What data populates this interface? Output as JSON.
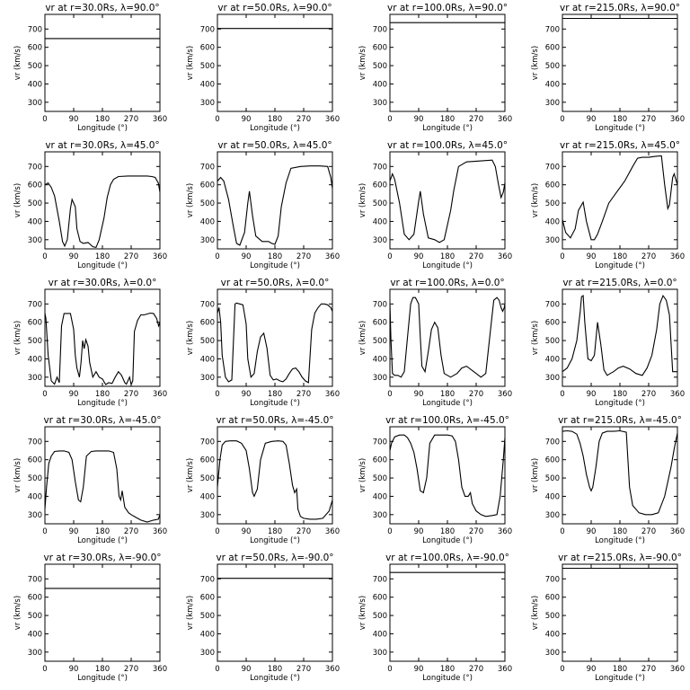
{
  "figure": {
    "rows": 5,
    "cols": 4
  },
  "chart_data": [
    {
      "type": "line",
      "title": "vr at r=30.0Rs, λ=90.0°",
      "xlabel": "Longitude (°)",
      "ylabel": "vr (km/s)",
      "xlim": [
        0,
        360
      ],
      "ylim": [
        250,
        780
      ],
      "xticks": [
        0,
        90,
        180,
        270,
        360
      ],
      "yticks": [
        300,
        400,
        500,
        600,
        700
      ],
      "x": [
        0,
        360
      ],
      "values": [
        648,
        648
      ]
    },
    {
      "type": "line",
      "title": "vr at r=50.0Rs, λ=90.0°",
      "xlabel": "Longitude (°)",
      "ylabel": "vr (km/s)",
      "xlim": [
        0,
        360
      ],
      "ylim": [
        250,
        780
      ],
      "xticks": [
        0,
        90,
        180,
        270,
        360
      ],
      "yticks": [
        300,
        400,
        500,
        600,
        700
      ],
      "x": [
        0,
        360
      ],
      "values": [
        703,
        703
      ]
    },
    {
      "type": "line",
      "title": "vr at r=100.0Rs, λ=90.0°",
      "xlabel": "Longitude (°)",
      "ylabel": "vr (km/s)",
      "xlim": [
        0,
        360
      ],
      "ylim": [
        250,
        780
      ],
      "xticks": [
        0,
        90,
        180,
        270,
        360
      ],
      "yticks": [
        300,
        400,
        500,
        600,
        700
      ],
      "x": [
        0,
        360
      ],
      "values": [
        735,
        735
      ]
    },
    {
      "type": "line",
      "title": "vr at r=215.0Rs, λ=90.0°",
      "xlabel": "Longitude (°)",
      "ylabel": "vr (km/s)",
      "xlim": [
        0,
        360
      ],
      "ylim": [
        250,
        780
      ],
      "xticks": [
        0,
        90,
        180,
        270,
        360
      ],
      "yticks": [
        300,
        400,
        500,
        600,
        700
      ],
      "x": [
        0,
        360
      ],
      "values": [
        758,
        758
      ]
    },
    {
      "type": "line",
      "title": "vr at r=30.0Rs, λ=45.0°",
      "xlabel": "Longitude (°)",
      "ylabel": "vr (km/s)",
      "xlim": [
        0,
        360
      ],
      "ylim": [
        250,
        780
      ],
      "xticks": [
        0,
        90,
        180,
        270,
        360
      ],
      "yticks": [
        300,
        400,
        500,
        600,
        700
      ],
      "x": [
        0,
        10,
        20,
        30,
        45,
        55,
        62,
        70,
        80,
        85,
        95,
        100,
        110,
        120,
        135,
        150,
        160,
        170,
        185,
        195,
        205,
        215,
        230,
        260,
        290,
        320,
        335,
        345,
        355,
        360
      ],
      "values": [
        600,
        610,
        585,
        540,
        400,
        290,
        265,
        300,
        470,
        520,
        480,
        360,
        290,
        280,
        285,
        262,
        258,
        300,
        420,
        530,
        600,
        630,
        645,
        648,
        648,
        648,
        645,
        640,
        610,
        560
      ]
    },
    {
      "type": "line",
      "title": "vr at r=50.0Rs, λ=45.0°",
      "xlabel": "Longitude (°)",
      "ylabel": "vr (km/s)",
      "xlim": [
        0,
        360
      ],
      "ylim": [
        250,
        780
      ],
      "xticks": [
        0,
        90,
        180,
        270,
        360
      ],
      "yticks": [
        300,
        400,
        500,
        600,
        700
      ],
      "x": [
        0,
        10,
        20,
        35,
        50,
        60,
        70,
        85,
        95,
        100,
        110,
        120,
        140,
        160,
        170,
        180,
        190,
        200,
        215,
        230,
        260,
        290,
        320,
        345,
        355,
        360
      ],
      "values": [
        620,
        640,
        620,
        520,
        370,
        280,
        270,
        340,
        500,
        565,
        430,
        320,
        290,
        290,
        280,
        275,
        320,
        480,
        610,
        690,
        700,
        703,
        703,
        700,
        640,
        580
      ]
    },
    {
      "type": "line",
      "title": "vr at r=100.0Rs, λ=45.0°",
      "xlabel": "Longitude (°)",
      "ylabel": "vr (km/s)",
      "xlim": [
        0,
        360
      ],
      "ylim": [
        250,
        780
      ],
      "xticks": [
        0,
        90,
        180,
        270,
        360
      ],
      "yticks": [
        300,
        400,
        500,
        600,
        700
      ],
      "x": [
        0,
        8,
        15,
        30,
        45,
        60,
        75,
        90,
        95,
        105,
        120,
        140,
        155,
        170,
        190,
        200,
        215,
        240,
        280,
        320,
        330,
        340,
        348,
        355,
        360
      ],
      "values": [
        620,
        660,
        630,
        500,
        330,
        300,
        330,
        510,
        565,
        440,
        310,
        300,
        285,
        300,
        460,
        570,
        700,
        725,
        730,
        735,
        700,
        600,
        530,
        560,
        610
      ]
    },
    {
      "type": "line",
      "title": "vr at r=215.0Rs, λ=45.0°",
      "xlabel": "Longitude (°)",
      "ylabel": "vr (km/s)",
      "xlim": [
        0,
        360
      ],
      "ylim": [
        250,
        780
      ],
      "xticks": [
        0,
        90,
        180,
        270,
        360
      ],
      "yticks": [
        300,
        400,
        500,
        600,
        700
      ],
      "x": [
        0,
        10,
        25,
        40,
        50,
        65,
        75,
        90,
        100,
        110,
        125,
        145,
        170,
        195,
        220,
        235,
        250,
        270,
        290,
        310,
        320,
        330,
        335,
        345,
        350,
        360
      ],
      "values": [
        410,
        340,
        310,
        360,
        460,
        505,
        400,
        300,
        300,
        330,
        400,
        500,
        560,
        620,
        700,
        745,
        750,
        750,
        755,
        758,
        600,
        470,
        490,
        640,
        660,
        600
      ]
    },
    {
      "type": "line",
      "title": "vr at r=30.0Rs, λ=0.0°",
      "xlabel": "Longitude (°)",
      "ylabel": "vr (km/s)",
      "xlim": [
        0,
        360
      ],
      "ylim": [
        250,
        780
      ],
      "xticks": [
        0,
        90,
        180,
        270,
        360
      ],
      "yticks": [
        300,
        400,
        500,
        600,
        700
      ],
      "x": [
        0,
        3,
        10,
        20,
        30,
        38,
        45,
        52,
        60,
        65,
        72,
        80,
        90,
        95,
        100,
        108,
        113,
        118,
        123,
        128,
        135,
        140,
        150,
        160,
        170,
        180,
        190,
        200,
        210,
        220,
        230,
        240,
        250,
        255,
        265,
        270,
        275,
        280,
        290,
        300,
        310,
        320,
        330,
        340,
        350,
        356,
        360
      ],
      "values": [
        650,
        620,
        420,
        280,
        262,
        300,
        270,
        580,
        648,
        648,
        648,
        648,
        560,
        420,
        350,
        300,
        380,
        500,
        455,
        505,
        470,
        380,
        300,
        330,
        300,
        290,
        260,
        270,
        265,
        300,
        330,
        310,
        270,
        262,
        300,
        260,
        280,
        550,
        610,
        640,
        640,
        645,
        650,
        648,
        620,
        580,
        600
      ]
    },
    {
      "type": "line",
      "title": "vr at r=50.0Rs, λ=0.0°",
      "xlabel": "Longitude (°)",
      "ylabel": "vr (km/s)",
      "xlim": [
        0,
        360
      ],
      "ylim": [
        250,
        780
      ],
      "xticks": [
        0,
        90,
        180,
        270,
        360
      ],
      "yticks": [
        300,
        400,
        500,
        600,
        700
      ],
      "x": [
        0,
        5,
        10,
        15,
        25,
        35,
        45,
        55,
        60,
        70,
        80,
        90,
        95,
        105,
        115,
        125,
        135,
        145,
        155,
        165,
        175,
        185,
        195,
        205,
        215,
        225,
        235,
        245,
        255,
        265,
        275,
        285,
        295,
        305,
        315,
        325,
        335,
        345,
        355,
        360
      ],
      "values": [
        650,
        680,
        600,
        420,
        300,
        275,
        285,
        700,
        705,
        700,
        695,
        590,
        400,
        300,
        320,
        440,
        520,
        540,
        460,
        310,
        285,
        290,
        280,
        275,
        290,
        320,
        345,
        350,
        330,
        300,
        280,
        270,
        560,
        650,
        680,
        700,
        700,
        695,
        680,
        660
      ]
    },
    {
      "type": "line",
      "title": "vr at r=100.0Rs, λ=0.0°",
      "xlabel": "Longitude (°)",
      "ylabel": "vr (km/s)",
      "xlim": [
        0,
        360
      ],
      "ylim": [
        250,
        780
      ],
      "xticks": [
        0,
        90,
        180,
        270,
        360
      ],
      "yticks": [
        300,
        400,
        500,
        600,
        700
      ],
      "x": [
        0,
        3,
        8,
        15,
        25,
        35,
        45,
        55,
        65,
        72,
        80,
        90,
        95,
        100,
        110,
        120,
        130,
        140,
        150,
        160,
        170,
        190,
        210,
        225,
        240,
        255,
        270,
        285,
        300,
        315,
        325,
        335,
        342,
        348,
        353,
        358,
        360
      ],
      "values": [
        700,
        510,
        320,
        310,
        310,
        300,
        330,
        520,
        700,
        735,
        735,
        700,
        520,
        360,
        330,
        440,
        560,
        600,
        570,
        420,
        320,
        300,
        320,
        350,
        360,
        340,
        320,
        300,
        320,
        560,
        720,
        735,
        720,
        680,
        660,
        680,
        700
      ]
    },
    {
      "type": "line",
      "title": "vr at r=215.0Rs, λ=0.0°",
      "xlabel": "Longitude (°)",
      "ylabel": "vr (km/s)",
      "xlim": [
        0,
        360
      ],
      "ylim": [
        250,
        780
      ],
      "xticks": [
        0,
        90,
        180,
        270,
        360
      ],
      "yticks": [
        300,
        400,
        500,
        600,
        700
      ],
      "x": [
        0,
        15,
        30,
        45,
        55,
        60,
        65,
        70,
        80,
        90,
        100,
        110,
        120,
        130,
        140,
        150,
        160,
        175,
        190,
        210,
        230,
        250,
        265,
        280,
        295,
        305,
        315,
        325,
        335,
        345,
        352,
        360
      ],
      "values": [
        330,
        350,
        400,
        500,
        650,
        740,
        745,
        600,
        400,
        390,
        420,
        600,
        480,
        340,
        310,
        320,
        330,
        350,
        360,
        345,
        320,
        310,
        350,
        420,
        560,
        700,
        745,
        720,
        640,
        330,
        330,
        330
      ]
    },
    {
      "type": "line",
      "title": "vr at r=30.0Rs, λ=-45.0°",
      "xlabel": "Longitude (°)",
      "ylabel": "vr (km/s)",
      "xlim": [
        0,
        360
      ],
      "ylim": [
        250,
        780
      ],
      "xticks": [
        0,
        90,
        180,
        270,
        360
      ],
      "yticks": [
        300,
        400,
        500,
        600,
        700
      ],
      "x": [
        0,
        5,
        12,
        20,
        30,
        45,
        60,
        75,
        85,
        95,
        105,
        112,
        120,
        130,
        145,
        160,
        180,
        200,
        215,
        225,
        232,
        237,
        242,
        250,
        262,
        270,
        285,
        300,
        320,
        340,
        355,
        360
      ],
      "values": [
        330,
        450,
        580,
        620,
        645,
        648,
        648,
        640,
        600,
        480,
        380,
        370,
        450,
        620,
        645,
        648,
        648,
        648,
        640,
        550,
        400,
        380,
        430,
        340,
        310,
        300,
        285,
        270,
        260,
        270,
        275,
        300
      ]
    },
    {
      "type": "line",
      "title": "vr at r=50.0Rs, λ=-45.0°",
      "xlabel": "Longitude (°)",
      "ylabel": "vr (km/s)",
      "xlim": [
        0,
        360
      ],
      "ylim": [
        250,
        780
      ],
      "xticks": [
        0,
        90,
        180,
        270,
        360
      ],
      "yticks": [
        300,
        400,
        500,
        600,
        700
      ],
      "x": [
        0,
        8,
        15,
        25,
        40,
        60,
        75,
        90,
        100,
        110,
        115,
        125,
        135,
        150,
        170,
        190,
        205,
        215,
        225,
        235,
        242,
        248,
        252,
        260,
        270,
        290,
        310,
        330,
        350,
        360
      ],
      "values": [
        450,
        600,
        680,
        700,
        703,
        703,
        690,
        650,
        550,
        420,
        400,
        440,
        600,
        690,
        700,
        703,
        700,
        680,
        580,
        460,
        420,
        440,
        330,
        290,
        280,
        275,
        275,
        280,
        320,
        380
      ]
    },
    {
      "type": "line",
      "title": "vr at r=100.0Rs, λ=-45.0°",
      "xlabel": "Longitude (°)",
      "ylabel": "vr (km/s)",
      "xlim": [
        0,
        360
      ],
      "ylim": [
        250,
        780
      ],
      "xticks": [
        0,
        90,
        180,
        270,
        360
      ],
      "yticks": [
        300,
        400,
        500,
        600,
        700
      ],
      "x": [
        0,
        5,
        15,
        30,
        45,
        55,
        65,
        75,
        85,
        95,
        105,
        115,
        125,
        140,
        160,
        180,
        195,
        205,
        215,
        225,
        235,
        245,
        252,
        258,
        270,
        285,
        300,
        320,
        335,
        345,
        355,
        360
      ],
      "values": [
        650,
        690,
        725,
        735,
        735,
        720,
        690,
        640,
        550,
        430,
        420,
        500,
        690,
        735,
        735,
        735,
        730,
        700,
        600,
        450,
        400,
        400,
        420,
        360,
        320,
        300,
        290,
        295,
        300,
        400,
        600,
        720
      ]
    },
    {
      "type": "line",
      "title": "vr at r=215.0Rs, λ=-45.0°",
      "xlabel": "Longitude (°)",
      "ylabel": "vr (km/s)",
      "xlim": [
        0,
        360
      ],
      "ylim": [
        250,
        780
      ],
      "xticks": [
        0,
        90,
        180,
        270,
        360
      ],
      "yticks": [
        300,
        400,
        500,
        600,
        700
      ],
      "x": [
        0,
        15,
        30,
        45,
        55,
        65,
        75,
        85,
        90,
        95,
        105,
        115,
        125,
        140,
        160,
        180,
        200,
        205,
        210,
        220,
        240,
        260,
        280,
        300,
        320,
        340,
        350,
        360
      ],
      "values": [
        755,
        758,
        755,
        740,
        690,
        620,
        520,
        450,
        430,
        450,
        560,
        700,
        745,
        755,
        755,
        758,
        750,
        600,
        450,
        350,
        310,
        300,
        300,
        310,
        400,
        560,
        660,
        745
      ]
    },
    {
      "type": "line",
      "title": "vr at r=30.0Rs, λ=-90.0°",
      "xlabel": "Longitude (°)",
      "ylabel": "vr (km/s)",
      "xlim": [
        0,
        360
      ],
      "ylim": [
        250,
        780
      ],
      "xticks": [
        0,
        90,
        180,
        270,
        360
      ],
      "yticks": [
        300,
        400,
        500,
        600,
        700
      ],
      "x": [
        0,
        360
      ],
      "values": [
        648,
        648
      ]
    },
    {
      "type": "line",
      "title": "vr at r=50.0Rs, λ=-90.0°",
      "xlabel": "Longitude (°)",
      "ylabel": "vr (km/s)",
      "xlim": [
        0,
        360
      ],
      "ylim": [
        250,
        780
      ],
      "xticks": [
        0,
        90,
        180,
        270,
        360
      ],
      "yticks": [
        300,
        400,
        500,
        600,
        700
      ],
      "x": [
        0,
        360
      ],
      "values": [
        703,
        703
      ]
    },
    {
      "type": "line",
      "title": "vr at r=100.0Rs, λ=-90.0°",
      "xlabel": "Longitude (°)",
      "ylabel": "vr (km/s)",
      "xlim": [
        0,
        360
      ],
      "ylim": [
        250,
        780
      ],
      "xticks": [
        0,
        90,
        180,
        270,
        360
      ],
      "yticks": [
        300,
        400,
        500,
        600,
        700
      ],
      "x": [
        0,
        360
      ],
      "values": [
        735,
        735
      ]
    },
    {
      "type": "line",
      "title": "vr at r=215.0Rs, λ=-90.0°",
      "xlabel": "Longitude (°)",
      "ylabel": "vr (km/s)",
      "xlim": [
        0,
        360
      ],
      "ylim": [
        250,
        780
      ],
      "xticks": [
        0,
        90,
        180,
        270,
        360
      ],
      "yticks": [
        300,
        400,
        500,
        600,
        700
      ],
      "x": [
        0,
        360
      ],
      "values": [
        758,
        758
      ]
    }
  ]
}
